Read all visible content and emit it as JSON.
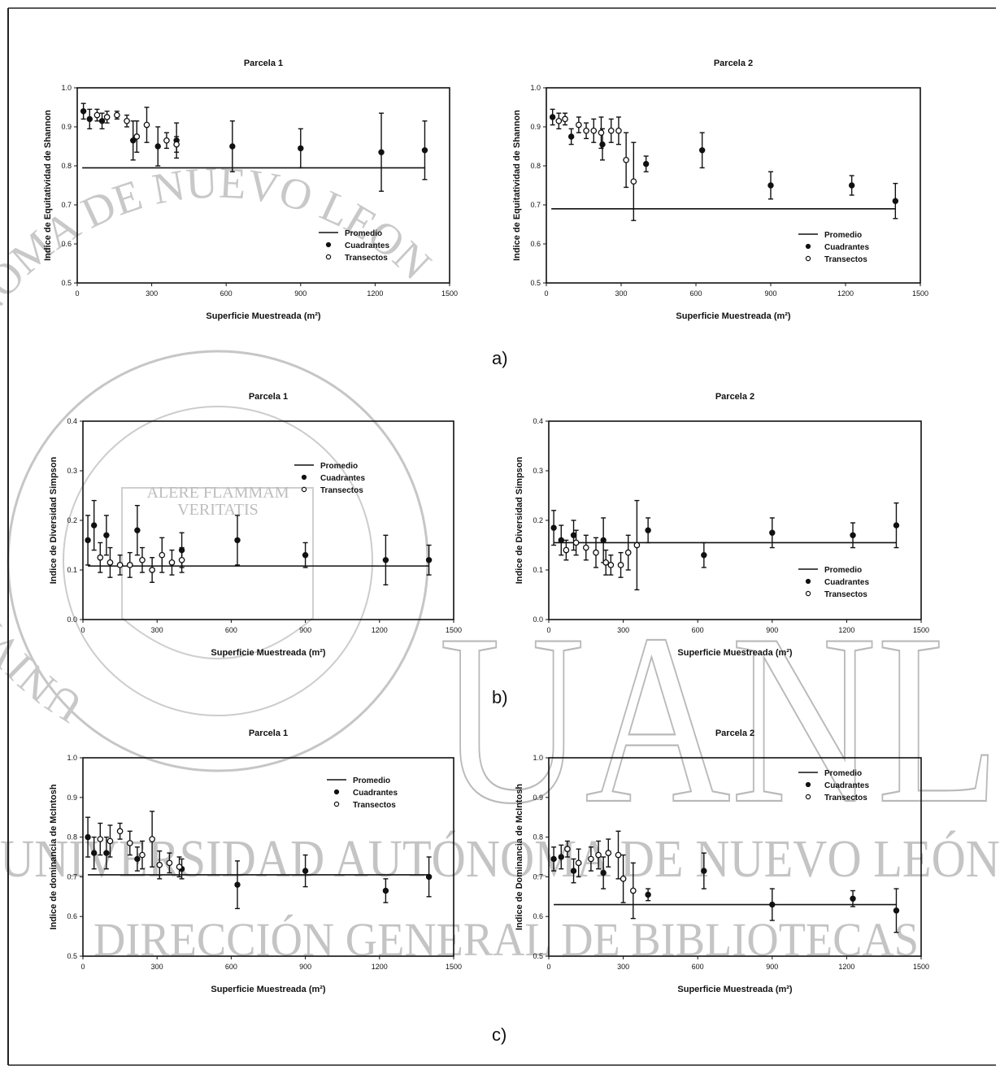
{
  "chart_data": [
    {
      "type": "scatter",
      "title": "Parcela 1",
      "xlabel": "Superficie Muestreada (m²)",
      "ylabel": "Indice de Equitatividad de Shannon",
      "xlim": [
        0,
        1500
      ],
      "ylim": [
        0.5,
        1.0
      ],
      "xticks": [
        0,
        300,
        600,
        900,
        1200,
        1500
      ],
      "yticks": [
        0.5,
        0.6,
        0.7,
        0.8,
        0.9,
        1.0
      ],
      "ytick_labels": [
        "0.5",
        "0.6",
        "0.7",
        "0.8",
        "0.9",
        "1.0"
      ],
      "promedio": 0.795,
      "promedio_range": [
        20,
        1400
      ],
      "legend": [
        "Promedio",
        "Cuadrantes",
        "Transectos"
      ],
      "series": [
        {
          "name": "Cuadrantes",
          "marker": "filled",
          "points": [
            [
              25,
              0.94,
              0.02
            ],
            [
              50,
              0.92,
              0.025
            ],
            [
              100,
              0.915,
              0.02
            ],
            [
              225,
              0.865,
              0.05
            ],
            [
              325,
              0.85,
              0.05
            ],
            [
              400,
              0.865,
              0.045
            ],
            [
              625,
              0.85,
              0.065
            ],
            [
              900,
              0.845,
              0.05
            ],
            [
              1225,
              0.835,
              0.1
            ],
            [
              1400,
              0.84,
              0.075
            ]
          ]
        },
        {
          "name": "Transectos",
          "marker": "open",
          "points": [
            [
              80,
              0.93,
              0.015
            ],
            [
              120,
              0.925,
              0.015
            ],
            [
              160,
              0.93,
              0.01
            ],
            [
              200,
              0.915,
              0.015
            ],
            [
              240,
              0.875,
              0.04
            ],
            [
              280,
              0.905,
              0.045
            ],
            [
              360,
              0.865,
              0.02
            ],
            [
              400,
              0.855,
              0.02
            ]
          ]
        }
      ]
    },
    {
      "type": "scatter",
      "title": "Parcela 2",
      "xlabel": "Superficie Muestreada (m²)",
      "ylabel": "Indice de Equitatividad de Shannon",
      "xlim": [
        0,
        1500
      ],
      "ylim": [
        0.5,
        1.0
      ],
      "xticks": [
        0,
        300,
        600,
        900,
        1200,
        1500
      ],
      "yticks": [
        0.5,
        0.6,
        0.7,
        0.8,
        0.9,
        1.0
      ],
      "ytick_labels": [
        "0.5",
        "0.6",
        "0.7",
        "0.8",
        "0.9",
        "1.0"
      ],
      "promedio": 0.69,
      "promedio_range": [
        20,
        1400
      ],
      "legend": [
        "Promedio",
        "Cuadrantes",
        "Transectos"
      ],
      "series": [
        {
          "name": "Cuadrantes",
          "marker": "filled",
          "points": [
            [
              25,
              0.925,
              0.02
            ],
            [
              100,
              0.875,
              0.02
            ],
            [
              225,
              0.855,
              0.04
            ],
            [
              400,
              0.805,
              0.02
            ],
            [
              625,
              0.84,
              0.045
            ],
            [
              900,
              0.75,
              0.035
            ],
            [
              1225,
              0.75,
              0.025
            ],
            [
              1400,
              0.71,
              0.045
            ]
          ]
        },
        {
          "name": "Transectos",
          "marker": "open",
          "points": [
            [
              50,
              0.915,
              0.02
            ],
            [
              75,
              0.92,
              0.015
            ],
            [
              130,
              0.905,
              0.02
            ],
            [
              160,
              0.89,
              0.02
            ],
            [
              190,
              0.89,
              0.03
            ],
            [
              220,
              0.885,
              0.04
            ],
            [
              260,
              0.89,
              0.03
            ],
            [
              290,
              0.89,
              0.035
            ],
            [
              320,
              0.815,
              0.07
            ],
            [
              350,
              0.76,
              0.1
            ]
          ]
        }
      ]
    },
    {
      "type": "scatter",
      "title": "Parcela 1",
      "xlabel": "Superficie Muestreada (m²)",
      "ylabel": "Indice de Diversidad Simpson",
      "xlim": [
        0,
        1500
      ],
      "ylim": [
        0.0,
        0.4
      ],
      "xticks": [
        0,
        300,
        600,
        900,
        1200,
        1500
      ],
      "yticks": [
        0.0,
        0.1,
        0.2,
        0.3,
        0.4
      ],
      "ytick_labels": [
        "0.0",
        "0.1",
        "0.2",
        "0.3",
        "0.4"
      ],
      "promedio": 0.108,
      "promedio_range": [
        20,
        1400
      ],
      "legend": [
        "Promedio",
        "Cuadrantes",
        "Transectos"
      ],
      "series": [
        {
          "name": "Cuadrantes",
          "marker": "filled",
          "points": [
            [
              20,
              0.16,
              0.05
            ],
            [
              45,
              0.19,
              0.05
            ],
            [
              95,
              0.17,
              0.04
            ],
            [
              220,
              0.18,
              0.05
            ],
            [
              400,
              0.14,
              0.035
            ],
            [
              625,
              0.16,
              0.05
            ],
            [
              900,
              0.13,
              0.025
            ],
            [
              1225,
              0.12,
              0.05
            ],
            [
              1400,
              0.12,
              0.03
            ]
          ]
        },
        {
          "name": "Transectos",
          "marker": "open",
          "points": [
            [
              70,
              0.125,
              0.03
            ],
            [
              110,
              0.115,
              0.03
            ],
            [
              150,
              0.11,
              0.02
            ],
            [
              190,
              0.11,
              0.025
            ],
            [
              240,
              0.12,
              0.025
            ],
            [
              280,
              0.1,
              0.025
            ],
            [
              320,
              0.13,
              0.035
            ],
            [
              360,
              0.115,
              0.025
            ],
            [
              400,
              0.12,
              0.025
            ]
          ]
        }
      ]
    },
    {
      "type": "scatter",
      "title": "Parcela 2",
      "xlabel": "Superficie Muestreada (m²)",
      "ylabel": "Indice de Diversidad Simpson",
      "xlim": [
        0,
        1500
      ],
      "ylim": [
        0.0,
        0.4
      ],
      "xticks": [
        0,
        300,
        600,
        900,
        1200,
        1500
      ],
      "yticks": [
        0.0,
        0.1,
        0.2,
        0.3,
        0.4
      ],
      "ytick_labels": [
        "0.0",
        "0.1",
        "0.2",
        "0.3",
        "0.4"
      ],
      "promedio": 0.155,
      "promedio_range": [
        20,
        1400
      ],
      "legend": [
        "Promedio",
        "Cuadrantes",
        "Transectos"
      ],
      "series": [
        {
          "name": "Cuadrantes",
          "marker": "filled",
          "points": [
            [
              20,
              0.185,
              0.035
            ],
            [
              50,
              0.16,
              0.03
            ],
            [
              100,
              0.17,
              0.03
            ],
            [
              220,
              0.16,
              0.045
            ],
            [
              400,
              0.18,
              0.025
            ],
            [
              625,
              0.13,
              0.025
            ],
            [
              900,
              0.175,
              0.03
            ],
            [
              1225,
              0.17,
              0.025
            ],
            [
              1400,
              0.19,
              0.045
            ]
          ]
        },
        {
          "name": "Transectos",
          "marker": "open",
          "points": [
            [
              70,
              0.14,
              0.02
            ],
            [
              110,
              0.155,
              0.025
            ],
            [
              150,
              0.145,
              0.025
            ],
            [
              190,
              0.135,
              0.03
            ],
            [
              230,
              0.115,
              0.025
            ],
            [
              250,
              0.11,
              0.02
            ],
            [
              290,
              0.11,
              0.025
            ],
            [
              320,
              0.135,
              0.035
            ],
            [
              355,
              0.15,
              0.09
            ]
          ]
        }
      ]
    },
    {
      "type": "scatter",
      "title": "Parcela 1",
      "xlabel": "Superficie Muestreada (m²)",
      "ylabel": "Indice de dominancia de McIntosh",
      "xlim": [
        0,
        1500
      ],
      "ylim": [
        0.5,
        1.0
      ],
      "xticks": [
        0,
        300,
        600,
        900,
        1200,
        1500
      ],
      "yticks": [
        0.5,
        0.6,
        0.7,
        0.8,
        0.9,
        1.0
      ],
      "ytick_labels": [
        "0.5",
        "0.6",
        "0.7",
        "0.8",
        "0.9",
        "1.0"
      ],
      "promedio": 0.705,
      "promedio_range": [
        20,
        1400
      ],
      "legend": [
        "Promedio",
        "Cuadrantes",
        "Transectos"
      ],
      "series": [
        {
          "name": "Cuadrantes",
          "marker": "filled",
          "points": [
            [
              20,
              0.8,
              0.05
            ],
            [
              45,
              0.76,
              0.04
            ],
            [
              95,
              0.76,
              0.04
            ],
            [
              220,
              0.745,
              0.03
            ],
            [
              400,
              0.72,
              0.025
            ],
            [
              625,
              0.68,
              0.06
            ],
            [
              900,
              0.715,
              0.04
            ],
            [
              1225,
              0.665,
              0.03
            ],
            [
              1400,
              0.7,
              0.05
            ]
          ]
        },
        {
          "name": "Transectos",
          "marker": "open",
          "points": [
            [
              70,
              0.795,
              0.04
            ],
            [
              110,
              0.79,
              0.04
            ],
            [
              150,
              0.815,
              0.02
            ],
            [
              190,
              0.785,
              0.03
            ],
            [
              240,
              0.755,
              0.035
            ],
            [
              280,
              0.795,
              0.07
            ],
            [
              310,
              0.73,
              0.035
            ],
            [
              350,
              0.735,
              0.025
            ],
            [
              390,
              0.725,
              0.025
            ]
          ]
        }
      ]
    },
    {
      "type": "scatter",
      "title": "Parcela 2",
      "xlabel": "Superficie Muestreada (m²)",
      "ylabel": "Indice de Dominancia de McIntosh",
      "xlim": [
        0,
        1500
      ],
      "ylim": [
        0.5,
        1.0
      ],
      "xticks": [
        0,
        300,
        600,
        900,
        1200,
        1500
      ],
      "yticks": [
        0.5,
        0.6,
        0.7,
        0.8,
        0.9,
        1.0
      ],
      "ytick_labels": [
        "0.5",
        "0.6",
        "0.7",
        "0.8",
        "0.9",
        "1.0"
      ],
      "promedio": 0.63,
      "promedio_range": [
        20,
        1400
      ],
      "legend": [
        "Promedio",
        "Cuadrantes",
        "Transectos"
      ],
      "series": [
        {
          "name": "Cuadrantes",
          "marker": "filled",
          "points": [
            [
              20,
              0.745,
              0.03
            ],
            [
              50,
              0.75,
              0.03
            ],
            [
              100,
              0.715,
              0.03
            ],
            [
              220,
              0.71,
              0.04
            ],
            [
              400,
              0.655,
              0.015
            ],
            [
              625,
              0.715,
              0.045
            ],
            [
              900,
              0.63,
              0.04
            ],
            [
              1225,
              0.645,
              0.02
            ],
            [
              1400,
              0.615,
              0.055
            ]
          ]
        },
        {
          "name": "Transectos",
          "marker": "open",
          "points": [
            [
              75,
              0.77,
              0.02
            ],
            [
              120,
              0.735,
              0.035
            ],
            [
              170,
              0.745,
              0.03
            ],
            [
              200,
              0.755,
              0.035
            ],
            [
              240,
              0.76,
              0.035
            ],
            [
              280,
              0.755,
              0.06
            ],
            [
              300,
              0.695,
              0.06
            ],
            [
              340,
              0.665,
              0.07
            ]
          ]
        }
      ]
    }
  ],
  "panel_labels": [
    "a)",
    "b)",
    "c)"
  ],
  "watermark": {
    "big": "UANL",
    "line1": "UNIVERSIDAD AUTÓNOMA DE NUEVO LEÓN",
    "line2": "DIRECCIÓN GENERAL DE BIBLIOTECAS",
    "seal_arc": "UNIVERSIDAD AUTONOMA DE NUEVO LEON",
    "motto_1": "ALERE FLAMMAM",
    "motto_2": "VERITATIS"
  }
}
